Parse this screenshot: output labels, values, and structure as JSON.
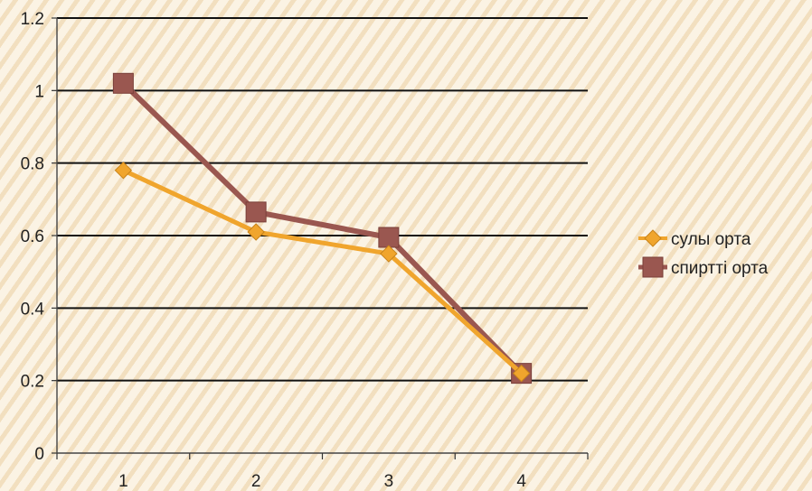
{
  "chart_data": {
    "type": "line",
    "x": [
      1,
      2,
      3,
      4
    ],
    "x_tick_labels": [
      "1",
      "2",
      "3",
      "4"
    ],
    "y_tick_labels": [
      "0",
      "0.2",
      "0.4",
      "0.6",
      "0.8",
      "1",
      "1.2"
    ],
    "ylim": [
      0,
      1.2
    ],
    "grid": "horizontal",
    "legend_position": "right",
    "series": [
      {
        "name": "сулы орта",
        "values": [
          0.78,
          0.61,
          0.55,
          0.22
        ],
        "color": "#f0a52d",
        "marker": "diamond"
      },
      {
        "name": "спиртті орта",
        "values": [
          1.02,
          0.665,
          0.595,
          0.22
        ],
        "color": "#9a5750",
        "marker": "square"
      }
    ]
  }
}
